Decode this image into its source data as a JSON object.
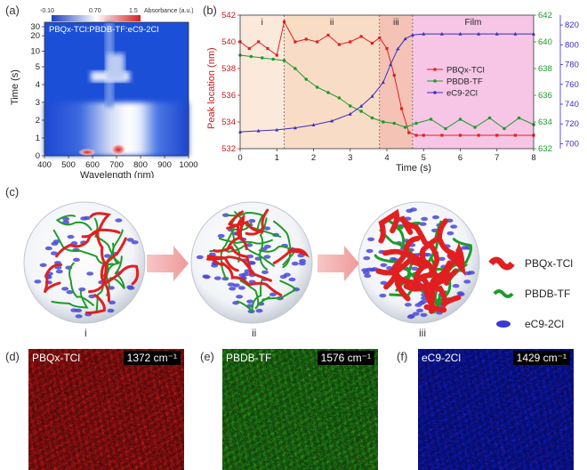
{
  "panel_labels": {
    "a": "(a)",
    "b": "(b)",
    "c": "(c)",
    "d": "(d)",
    "e": "(e)",
    "f": "(f)"
  },
  "chart_data": [
    {
      "type": "heatmap",
      "inset_text": "PBQx-TCl:PBDB-TF:eC9-2Cl",
      "xlabel": "Wavelength (nm)",
      "ylabel": "Time (s)",
      "xlim": [
        400,
        1000
      ],
      "x_ticks": [
        "400",
        "500",
        "600",
        "700",
        "800",
        "900",
        "1000"
      ],
      "y_ticks": [
        "0",
        "1",
        "2",
        "3",
        "4",
        "5",
        "10",
        "20",
        "30"
      ],
      "y_scale": "piecewise (linear 0–5, compressed 5–30)",
      "colorbar": {
        "label": "Absorbance (a.u.)",
        "ticks": [
          "-0.10",
          "0.70",
          "1.5"
        ],
        "colors": [
          "#1f3fb8",
          "#ffffff",
          "#d62020"
        ]
      },
      "colors": {
        "background": "#1c4fd8",
        "hot": "#d62020"
      }
    },
    {
      "type": "line",
      "xlabel": "Time (s)",
      "ylabel_left": "Peak location (nm)",
      "ylim_left": [
        542,
        532
      ],
      "y_ticks_left": [
        "532",
        "534",
        "536",
        "538",
        "540",
        "542"
      ],
      "y_ticks_right_inner": [
        "632",
        "634",
        "636",
        "638",
        "640",
        "642"
      ],
      "y_ticks_right_outer": [
        "700",
        "720",
        "740",
        "760",
        "780",
        "800",
        "820"
      ],
      "ylim_right_inner": [
        642,
        632
      ],
      "ylim_right_outer": [
        830,
        695
      ],
      "xlim": [
        0,
        8
      ],
      "x_ticks": [
        "0",
        "1",
        "2",
        "3",
        "4",
        "5",
        "6",
        "7",
        "8"
      ],
      "regions": [
        {
          "label": "i",
          "x0": 0,
          "x1": 1.2,
          "color": "#fbeadb"
        },
        {
          "label": "ii",
          "x0": 1.2,
          "x1": 3.8,
          "color": "#f9dcc6"
        },
        {
          "label": "iii",
          "x0": 3.8,
          "x1": 4.7,
          "color": "#f4c3b6"
        },
        {
          "label": "Film",
          "x0": 4.7,
          "x1": 8,
          "color": "#f7c6e6"
        }
      ],
      "legend_position": "right-middle",
      "series": [
        {
          "name": "PBQx-TCl",
          "color": "#e02020",
          "axis": "left",
          "marker": "square",
          "x": [
            0,
            0.25,
            0.5,
            0.75,
            1.0,
            1.2,
            1.5,
            1.8,
            2.1,
            2.4,
            2.7,
            3.0,
            3.3,
            3.6,
            3.8,
            4.0,
            4.2,
            4.4,
            4.6,
            4.8,
            5.0,
            5.5,
            6.0,
            6.5,
            7.0,
            7.5,
            8.0
          ],
          "y": [
            540,
            539.5,
            540,
            539.5,
            539,
            541.5,
            540,
            540.2,
            540,
            540.5,
            539.8,
            540,
            540.4,
            539.9,
            540.3,
            539.5,
            537.5,
            535,
            533.2,
            533,
            533,
            533,
            533,
            533,
            533,
            533,
            533
          ]
        },
        {
          "name": "PBDB-TF",
          "color": "#1f9a2a",
          "axis": "right_inner",
          "marker": "circle",
          "x": [
            0,
            0.3,
            0.6,
            0.9,
            1.2,
            1.5,
            1.8,
            2.1,
            2.4,
            2.7,
            3.0,
            3.3,
            3.6,
            3.9,
            4.2,
            4.5,
            4.8,
            5.2,
            5.6,
            6.0,
            6.4,
            6.8,
            7.2,
            7.6,
            8.0
          ],
          "y": [
            639,
            638.9,
            638.8,
            638.7,
            638.6,
            638.0,
            637.2,
            636.6,
            636.2,
            635.8,
            635.2,
            634.8,
            634.3,
            634,
            633.9,
            633.6,
            633.9,
            634.2,
            633.5,
            634.2,
            633.6,
            634.3,
            633.5,
            634.3,
            633.8
          ]
        },
        {
          "name": "eC9-2Cl",
          "color": "#3a2ec0",
          "axis": "right_outer",
          "marker": "triangle",
          "x": [
            0,
            0.5,
            1.0,
            1.5,
            2.0,
            2.5,
            3.0,
            3.3,
            3.6,
            3.9,
            4.1,
            4.3,
            4.5,
            4.7,
            5.0,
            5.5,
            6.0,
            6.5,
            7.0,
            7.5,
            8.0
          ],
          "y": [
            712,
            713,
            714,
            716,
            719,
            723,
            730,
            738,
            748,
            762,
            780,
            796,
            806,
            810,
            811,
            811,
            811,
            811,
            811,
            811,
            811
          ]
        }
      ]
    }
  ],
  "schematic": {
    "legend": [
      {
        "name": "PBQx-TCl",
        "color": "#e02020",
        "icon": "red-ribbon-icon"
      },
      {
        "name": "PBDB-TF",
        "color": "#1f9a2a",
        "icon": "green-chain-icon"
      },
      {
        "name": "eC9-2Cl",
        "color": "#3a3ad0",
        "icon": "blue-disk-icon"
      }
    ],
    "stages": [
      "i",
      "ii",
      "iii"
    ]
  },
  "raman_maps": [
    {
      "label": "PBQx-TCl",
      "wavenumber": "1372 cm⁻¹",
      "color": "#d41a1a"
    },
    {
      "label": "PBDB-TF",
      "wavenumber": "1576 cm⁻¹",
      "color": "#2aa81e"
    },
    {
      "label": "eC9-2Cl",
      "wavenumber": "1429 cm⁻¹",
      "color": "#1020c8"
    }
  ]
}
